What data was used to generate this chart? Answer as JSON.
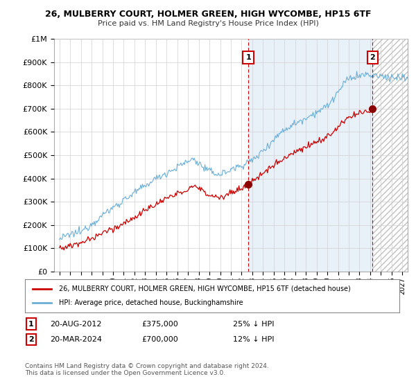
{
  "title": "26, MULBERRY COURT, HOLMER GREEN, HIGH WYCOMBE, HP15 6TF",
  "subtitle": "Price paid vs. HM Land Registry's House Price Index (HPI)",
  "legend_line1": "26, MULBERRY COURT, HOLMER GREEN, HIGH WYCOMBE, HP15 6TF (detached house)",
  "legend_line2": "HPI: Average price, detached house, Buckinghamshire",
  "annotation1_label": "1",
  "annotation1_date": "20-AUG-2012",
  "annotation1_price": "£375,000",
  "annotation1_hpi": "25% ↓ HPI",
  "annotation2_label": "2",
  "annotation2_date": "20-MAR-2024",
  "annotation2_price": "£700,000",
  "annotation2_hpi": "12% ↓ HPI",
  "footer": "Contains HM Land Registry data © Crown copyright and database right 2024.\nThis data is licensed under the Open Government Licence v3.0.",
  "hpi_color": "#6baed6",
  "hpi_fill_color": "#c6dbef",
  "price_color": "#cc0000",
  "annotation_box_color": "#cc0000",
  "grid_color": "#d0d0d0",
  "background_color": "#ffffff",
  "ylim": [
    0,
    1000000
  ],
  "yticks": [
    0,
    100000,
    200000,
    300000,
    400000,
    500000,
    600000,
    700000,
    800000,
    900000,
    1000000
  ],
  "xlim_start": 1994.5,
  "xlim_end": 2027.5,
  "xticks": [
    1995,
    1996,
    1997,
    1998,
    1999,
    2000,
    2001,
    2002,
    2003,
    2004,
    2005,
    2006,
    2007,
    2008,
    2009,
    2010,
    2011,
    2012,
    2013,
    2014,
    2015,
    2016,
    2017,
    2018,
    2019,
    2020,
    2021,
    2022,
    2023,
    2024,
    2025,
    2026,
    2027
  ],
  "sale1_x": 2012.63,
  "sale1_y": 375000,
  "sale2_x": 2024.22,
  "sale2_y": 700000,
  "vline1_x": 2012.63,
  "vline2_x": 2024.22
}
